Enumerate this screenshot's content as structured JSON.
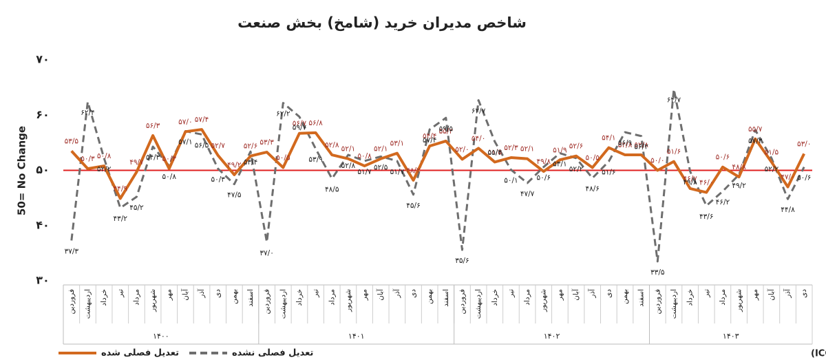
{
  "chart_data": {
    "type": "line",
    "title": "شاخص مدیران خرید (شامخ) بخش صنعت",
    "y_label": "50= No Change",
    "source": "منبع: اتاق بازرگانی، صنایع، معادن و کشاورزی ایران (ICCIMA)",
    "categories": [
      "فروردین",
      "اردیبهشت",
      "خرداد",
      "تیر",
      "مرداد",
      "شهریور",
      "مهر",
      "آبان",
      "آذر",
      "دی",
      "بهمن",
      "اسفند",
      "فروردین",
      "اردیبهشت",
      "خرداد",
      "تیر",
      "مرداد",
      "شهریور",
      "مهر",
      "آبان",
      "آذر",
      "دی",
      "بهمن",
      "اسفند",
      "فروردین",
      "اردیبهشت",
      "خرداد",
      "تیر",
      "مرداد",
      "شهریور",
      "مهر",
      "آبان",
      "آذر",
      "دی",
      "بهمن",
      "اسفند",
      "فروردین",
      "اردیبهشت",
      "خرداد",
      "تیر",
      "مرداد",
      "شهریور",
      "مهر",
      "آبان",
      "آذر",
      "دی"
    ],
    "x_groups": [
      "۱۴۰۰",
      "۱۴۰۱",
      "۱۴۰۲",
      "۱۴۰۳"
    ],
    "ylim": [
      30,
      70
    ],
    "yticks": [
      {
        "value": 30,
        "label": "۳۰"
      },
      {
        "value": 40,
        "label": "۴۰"
      },
      {
        "value": 50,
        "label": "۵۰"
      },
      {
        "value": 60,
        "label": "۶۰"
      },
      {
        "value": 70,
        "label": "۷۰"
      }
    ],
    "reference_line": {
      "value": 50,
      "color": "#e02020"
    },
    "series": [
      {
        "name": "تعدیل فصلی شده",
        "color": "#d2691e",
        "dash": false,
        "label_color": "#a0302a",
        "values": [
          53.5,
          50.3,
          50.8,
          44.9,
          49.7,
          56.3,
          50.3,
          57.0,
          57.4,
          52.7,
          49.2,
          52.6,
          53.3,
          50.5,
          56.7,
          56.8,
          52.8,
          52.1,
          50.8,
          52.1,
          53.1,
          48.2,
          54.4,
          55.3,
          52.0,
          54.0,
          51.5,
          52.3,
          52.1,
          49.8,
          51.9,
          52.6,
          50.5,
          54.1,
          52.8,
          52.8,
          50.0,
          51.6,
          46.7,
          46.0,
          50.6,
          48.8,
          55.7,
          51.5,
          47.0,
          53.0
        ],
        "value_labels": [
          "۵۳/۵",
          "۵۰/۳",
          "۵۰/۸",
          "۴۴/۹",
          "۴۹/۷",
          "۵۶/۳",
          "۵۰/۳",
          "۵۷/۰",
          "۵۷/۴",
          "۵۲/۷",
          "۴۹/۲",
          "۵۲/۶",
          "۵۳/۳",
          "۵۰/۵",
          "۵۶/۷",
          "۵۶/۸",
          "۵۲/۸",
          "۵۲/۱",
          "۵۰/۸",
          "۵۲/۱",
          "۵۳/۱",
          "۴۸/۲",
          "۵۴/۴",
          "۵۵/۳",
          "۵۲/۰",
          "۵۴/۰",
          "۵۱/۵",
          "۵۲/۳",
          "۵۲/۱",
          "۴۹/۸",
          "۵۱/۹",
          "۵۲/۶",
          "۵۰/۵",
          "۵۴/۱",
          "۵۲/۸",
          "۵۲/۸",
          "۵۰/۰",
          "۵۱/۶",
          "۴۶/۷",
          "۴۶/۰",
          "۵۰/۶",
          "۴۸/۸",
          "۵۵/۷",
          "۵۱/۵",
          "۴۷/۰",
          "۵۳/۰"
        ]
      },
      {
        "name": "تعدیل فصلی نشده",
        "color": "#6e6e6e",
        "dash": true,
        "label_color": "#222222",
        "values": [
          37.3,
          62.4,
          52.2,
          43.2,
          45.2,
          54.3,
          50.8,
          57.1,
          56.5,
          50.3,
          47.5,
          53.4,
          37.0,
          62.2,
          59.7,
          53.9,
          48.5,
          52.8,
          51.7,
          52.5,
          51.7,
          45.6,
          57.4,
          59.5,
          35.6,
          62.7,
          55.2,
          50.1,
          47.7,
          50.6,
          53.1,
          52.2,
          48.6,
          51.6,
          56.9,
          56.2,
          33.5,
          64.7,
          49.8,
          43.6,
          46.2,
          49.2,
          57.3,
          52.2,
          44.8,
          50.6
        ],
        "value_labels": [
          "۳۷/۳",
          "۶۲/۴",
          "۵۲/۲",
          "۴۳/۲",
          "۴۵/۲",
          "۵۴/۳",
          "۵۰/۸",
          "۵۷/۱",
          "۵۶/۵",
          "۵۰/۳",
          "۴۷/۵",
          "۵۳/۴",
          "۳۷/۰",
          "۶۲/۲",
          "۵۹/۷",
          "۵۳/۹",
          "۴۸/۵",
          "۵۲/۸",
          "۵۱/۷",
          "۵۲/۵",
          "۵۱/۷",
          "۴۵/۶",
          "۵۷/۴",
          "۵۹/۵",
          "۳۵/۶",
          "۶۲/۷",
          "۵۵/۲",
          "۵۰/۱",
          "۴۷/۷",
          "۵۰/۶",
          "۵۳/۱",
          "۵۲/۲",
          "۴۸/۶",
          "۵۱/۶",
          "۵۶/۹",
          "۵۶/۲",
          "۳۳/۵",
          "۶۴/۷",
          "۴۹/۸",
          "۴۳/۶",
          "۴۶/۲",
          "۴۹/۲",
          "۵۷/۳",
          "۵۲/۲",
          "۴۴/۸",
          "۵۰/۶"
        ]
      }
    ]
  }
}
